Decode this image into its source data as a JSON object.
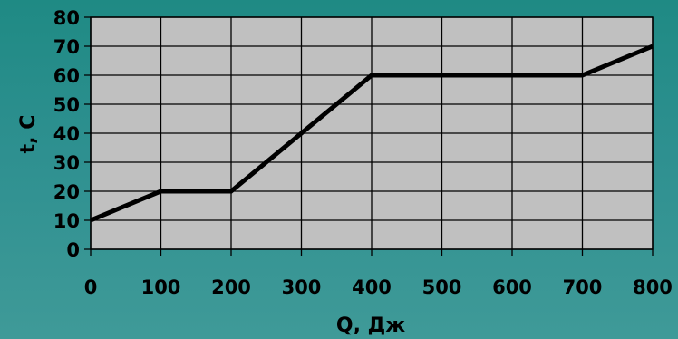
{
  "chart_data": {
    "type": "line",
    "title": "",
    "xlabel": "Q, Дж",
    "ylabel": "t, C",
    "xlim": [
      0,
      800
    ],
    "ylim": [
      0,
      80
    ],
    "x_ticks": [
      0,
      100,
      200,
      300,
      400,
      500,
      600,
      700,
      800
    ],
    "y_ticks": [
      0,
      10,
      20,
      30,
      40,
      50,
      60,
      70,
      80
    ],
    "x_tick_labels": [
      "0",
      "100",
      "200",
      "300",
      "400",
      "500",
      "600",
      "700",
      "800"
    ],
    "y_tick_labels": [
      "0",
      "10",
      "20",
      "30",
      "40",
      "50",
      "60",
      "70",
      "80"
    ],
    "grid": true,
    "series": [
      {
        "x": [
          0,
          100,
          200,
          400,
          700,
          800
        ],
        "y": [
          10,
          20,
          20,
          60,
          60,
          70
        ]
      }
    ],
    "colors": {
      "plot_background": "#c0c0c0",
      "grid": "#000000",
      "line": "#000000"
    }
  }
}
